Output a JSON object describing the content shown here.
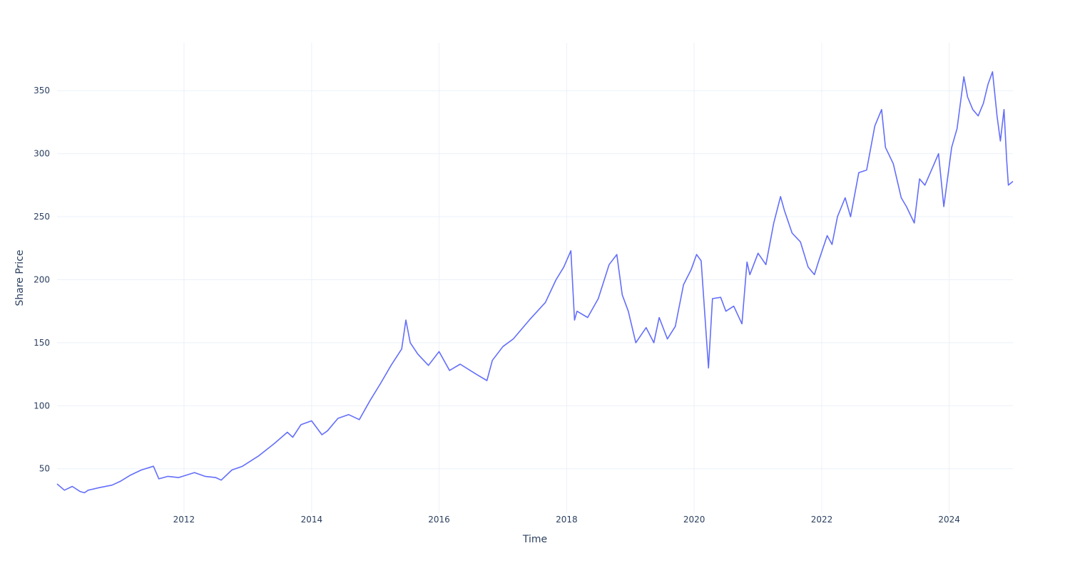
{
  "chart_data": {
    "type": "line",
    "title": "",
    "xlabel": "Time",
    "ylabel": "Share Price",
    "xlim": [
      "2010-01-04",
      "2024-12-31"
    ],
    "ylim": [
      14.8,
      388
    ],
    "grid": true,
    "legend": "none",
    "x_tick_labels": [
      "2012",
      "2014",
      "2016",
      "2018",
      "2020",
      "2022",
      "2024"
    ],
    "y_tick_labels": [
      "50",
      "100",
      "150",
      "200",
      "250",
      "300",
      "350"
    ],
    "y_ticks": [
      50,
      100,
      150,
      200,
      250,
      300,
      350
    ],
    "series": [
      {
        "color": "#636efa",
        "x": [
          "2010-01-04",
          "2010-02-15",
          "2010-04-01",
          "2010-05-15",
          "2010-06-10",
          "2010-07-01",
          "2010-09-01",
          "2010-11-15",
          "2011-01-01",
          "2011-03-01",
          "2011-05-01",
          "2011-07-10",
          "2011-08-10",
          "2011-10-01",
          "2011-12-01",
          "2012-03-01",
          "2012-05-01",
          "2012-07-01",
          "2012-08-01",
          "2012-10-01",
          "2012-12-01",
          "2013-03-01",
          "2013-06-01",
          "2013-08-15",
          "2013-09-15",
          "2013-11-01",
          "2014-01-01",
          "2014-03-01",
          "2014-04-01",
          "2014-06-01",
          "2014-08-01",
          "2014-10-01",
          "2014-12-01",
          "2015-02-01",
          "2015-04-01",
          "2015-06-01",
          "2015-06-25",
          "2015-07-20",
          "2015-09-01",
          "2015-11-01",
          "2016-01-01",
          "2016-03-01",
          "2016-05-01",
          "2016-08-01",
          "2016-10-01",
          "2016-11-01",
          "2017-01-01",
          "2017-03-01",
          "2017-06-01",
          "2017-09-01",
          "2017-11-01",
          "2017-12-15",
          "2018-01-25",
          "2018-02-15",
          "2018-03-01",
          "2018-05-01",
          "2018-07-01",
          "2018-09-01",
          "2018-10-15",
          "2018-11-15",
          "2018-12-20",
          "2019-02-01",
          "2019-04-01",
          "2019-05-15",
          "2019-06-15",
          "2019-08-01",
          "2019-09-15",
          "2019-11-01",
          "2019-12-15",
          "2020-01-15",
          "2020-02-10",
          "2020-03-23",
          "2020-04-15",
          "2020-06-01",
          "2020-07-01",
          "2020-08-15",
          "2020-10-01",
          "2020-10-30",
          "2020-11-15",
          "2021-01-01",
          "2021-02-15",
          "2021-04-01",
          "2021-05-10",
          "2021-06-01",
          "2021-07-15",
          "2021-09-01",
          "2021-10-15",
          "2021-11-20",
          "2021-12-15",
          "2022-02-01",
          "2022-03-01",
          "2022-04-01",
          "2022-05-15",
          "2022-06-15",
          "2022-08-01",
          "2022-09-15",
          "2022-11-01",
          "2022-12-10",
          "2023-01-01",
          "2023-02-15",
          "2023-04-01",
          "2023-05-01",
          "2023-06-15",
          "2023-07-15",
          "2023-08-15",
          "2023-10-01",
          "2023-11-01",
          "2023-12-01",
          "2024-01-15",
          "2024-02-15",
          "2024-03-25",
          "2024-04-15",
          "2024-05-15",
          "2024-06-15",
          "2024-07-15",
          "2024-08-10",
          "2024-09-05",
          "2024-10-01",
          "2024-10-20",
          "2024-11-10",
          "2024-11-25",
          "2024-12-05",
          "2024-12-31"
        ],
        "y": [
          38,
          33,
          36,
          32,
          31,
          33,
          35,
          37,
          40,
          45,
          49,
          52,
          42,
          44,
          43,
          47,
          44,
          43,
          41,
          49,
          52,
          60,
          70,
          79,
          75,
          85,
          88,
          77,
          80,
          90,
          93,
          89,
          104,
          118,
          132,
          145,
          168,
          150,
          141,
          132,
          143,
          128,
          133,
          125,
          120,
          136,
          147,
          153,
          168,
          182,
          200,
          210,
          223,
          168,
          175,
          170,
          185,
          212,
          220,
          188,
          175,
          150,
          162,
          150,
          170,
          153,
          163,
          196,
          208,
          220,
          215,
          130,
          185,
          186,
          175,
          179,
          165,
          214,
          204,
          221,
          212,
          245,
          266,
          255,
          237,
          230,
          210,
          204,
          215,
          235,
          228,
          250,
          265,
          250,
          285,
          287,
          322,
          335,
          305,
          292,
          265,
          258,
          245,
          280,
          275,
          290,
          300,
          258,
          305,
          320,
          361,
          345,
          335,
          330,
          340,
          355,
          365,
          330,
          310,
          335,
          295,
          275,
          278
        ]
      }
    ]
  }
}
